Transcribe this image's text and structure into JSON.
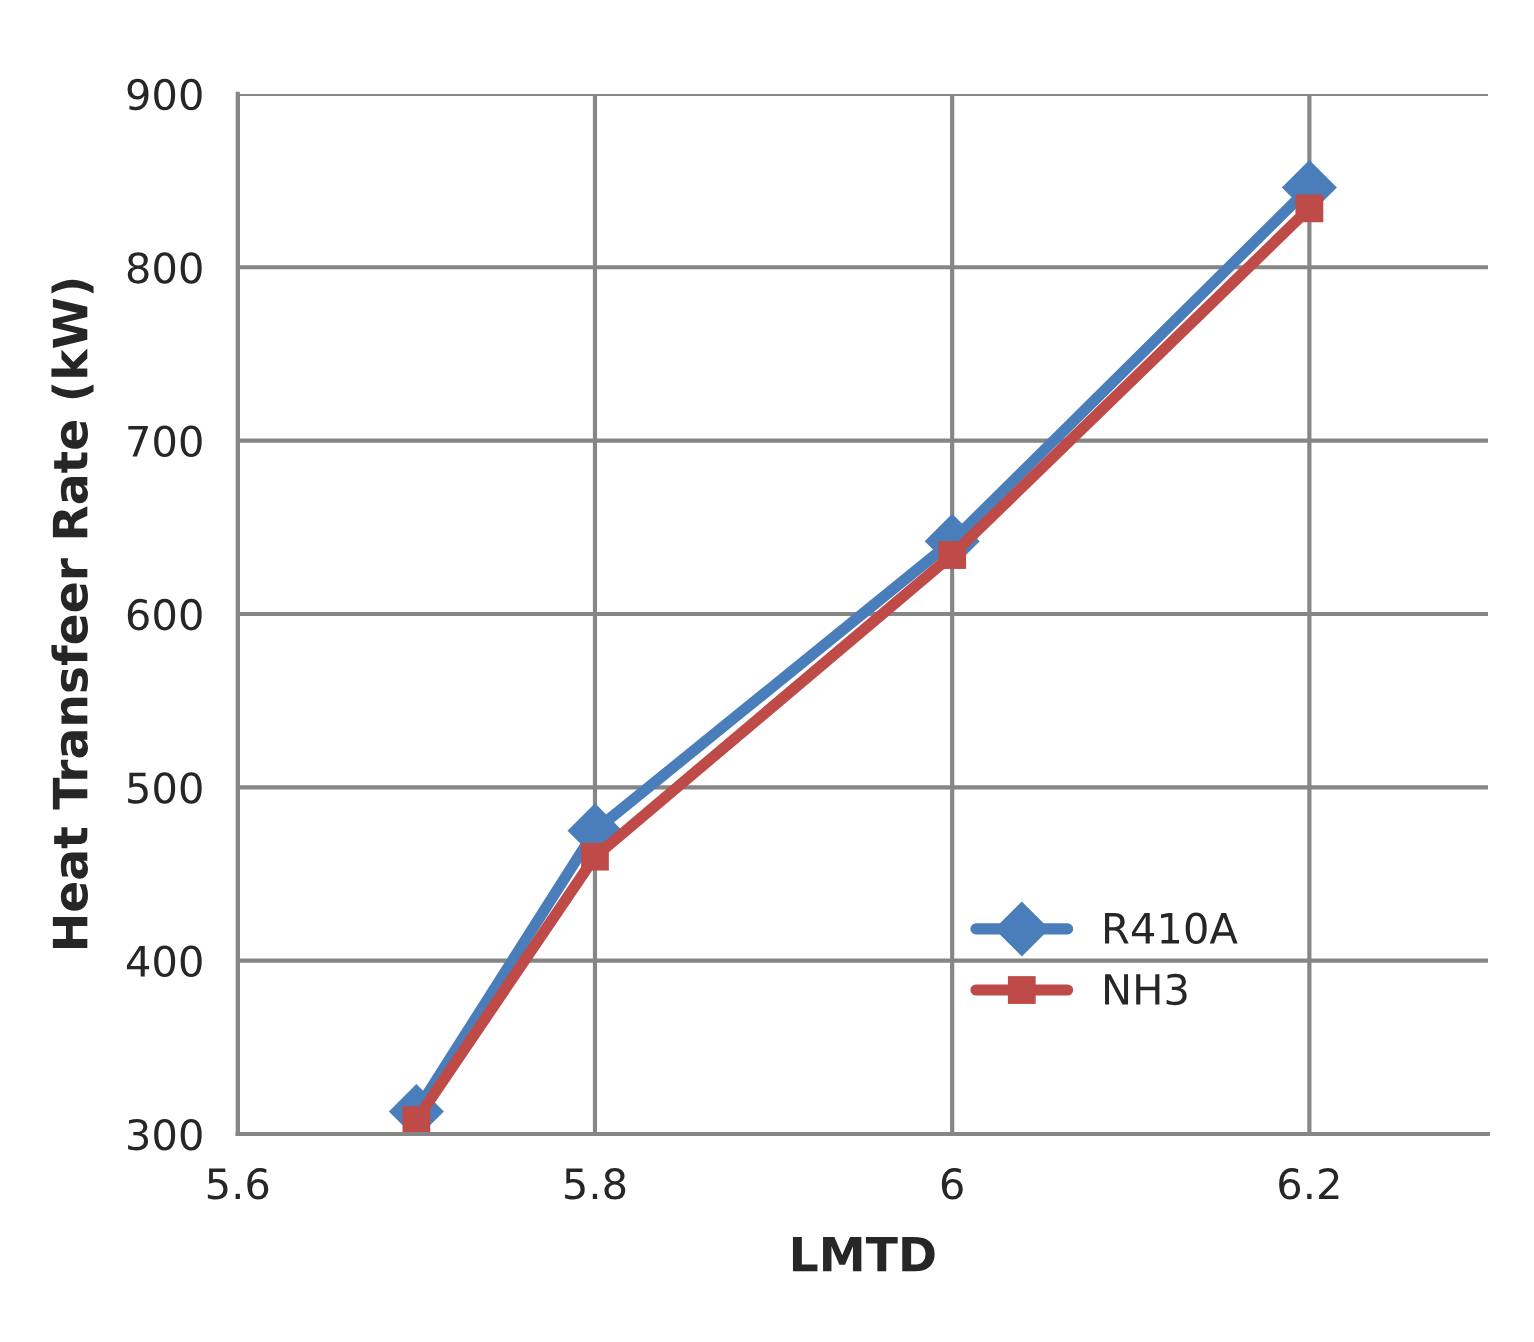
{
  "chart_data": {
    "type": "line",
    "xlabel": "LMTD",
    "ylabel": "Heat Transfeer Rate (kW)",
    "x": [
      5.7,
      5.8,
      6.0,
      6.2
    ],
    "series": [
      {
        "name": "R410A",
        "color": "#4a7ebb",
        "marker": "diamond",
        "values": [
          313,
          475,
          642,
          846
        ]
      },
      {
        "name": "NH3",
        "color": "#be4b48",
        "marker": "square",
        "values": [
          308,
          460,
          634,
          834
        ]
      }
    ],
    "xlim": [
      5.6,
      6.3
    ],
    "xticks": [
      5.6,
      5.8,
      6,
      6.2
    ],
    "ylim": [
      300,
      900
    ],
    "yticks": [
      300,
      400,
      500,
      600,
      700,
      800,
      900
    ],
    "grid": true,
    "legend": "bottom right",
    "line_style": "solid"
  }
}
